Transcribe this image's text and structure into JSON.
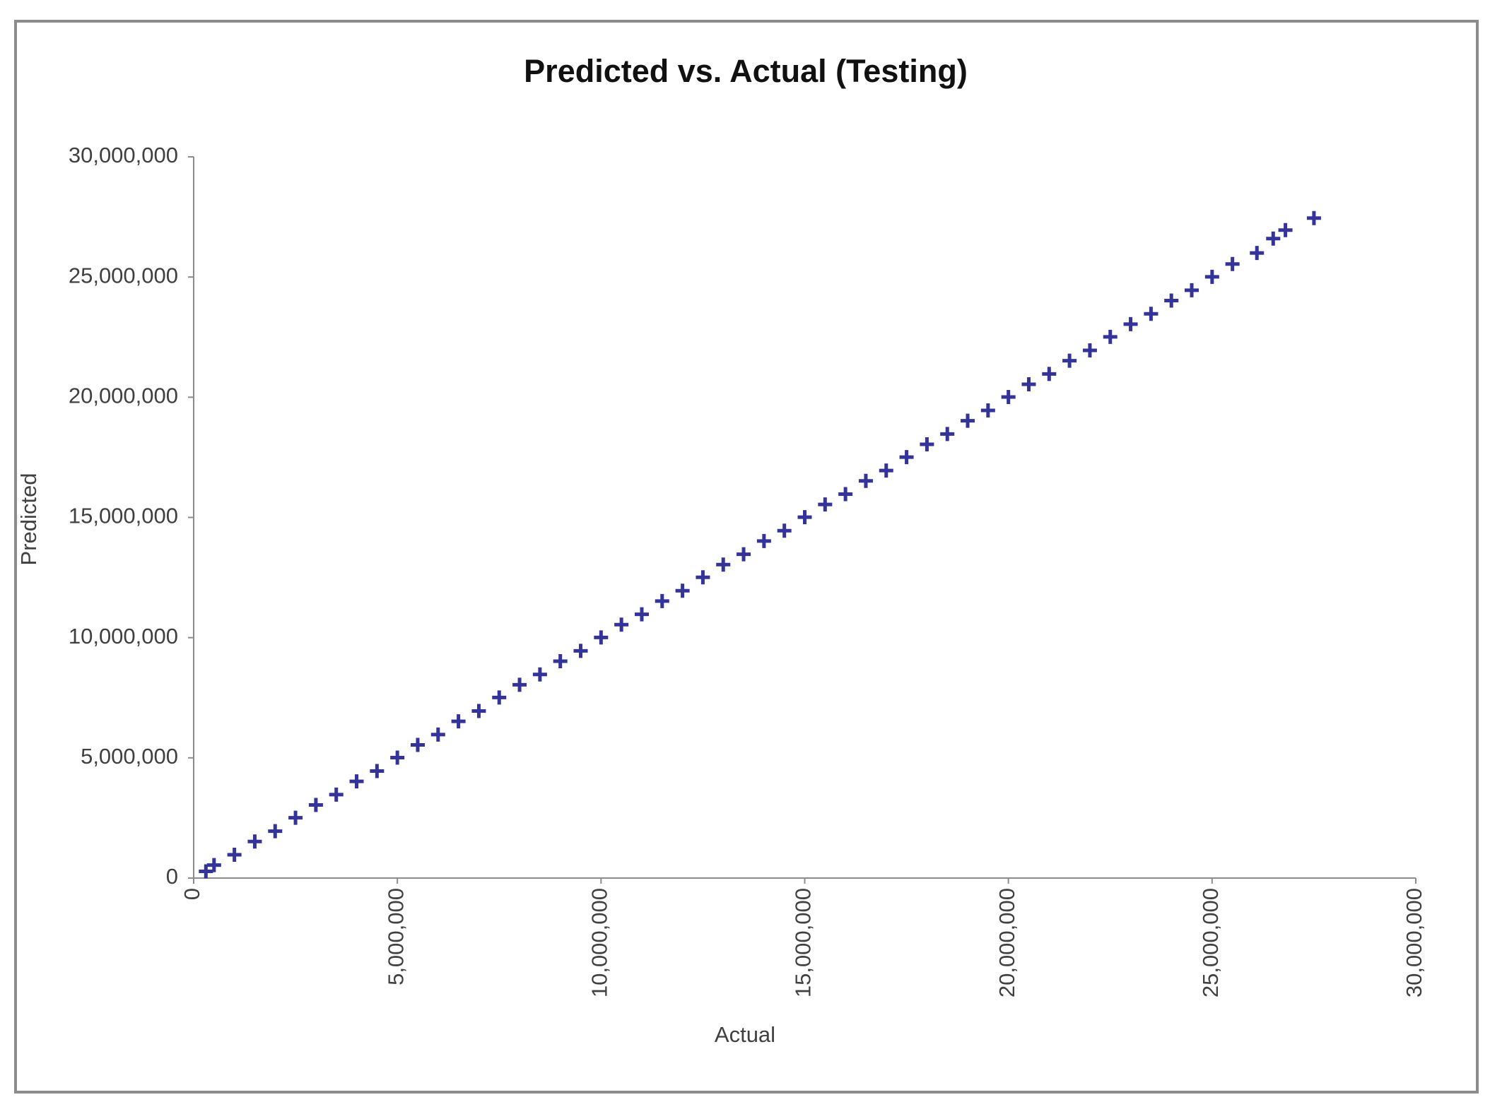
{
  "chart_data": {
    "type": "scatter",
    "title": "Predicted vs. Actual (Testing)",
    "x_label": "Actual",
    "y_label": "Predicted",
    "color": "#333399",
    "marker": "plus",
    "x": [
      300000,
      500000,
      1000000,
      1500000,
      2000000,
      2500000,
      3000000,
      3500000,
      4000000,
      4500000,
      5000000,
      5500000,
      6000000,
      6500000,
      7000000,
      7500000,
      8000000,
      8500000,
      9000000,
      9500000,
      10000000,
      10500000,
      11000000,
      11500000,
      12000000,
      12500000,
      13000000,
      13500000,
      14000000,
      14500000,
      15000000,
      15500000,
      16000000,
      16500000,
      17000000,
      17500000,
      18000000,
      18500000,
      19000000,
      19500000,
      20000000,
      20500000,
      21000000,
      21500000,
      22000000,
      22500000,
      23000000,
      23500000,
      24000000,
      24500000,
      25000000,
      25500000,
      26100000,
      26500000,
      26800000,
      27500000
    ],
    "values": [
      280000,
      540000,
      970000,
      1520000,
      1950000,
      2510000,
      3040000,
      3470000,
      4020000,
      4450000,
      5010000,
      5540000,
      5970000,
      6520000,
      6950000,
      7510000,
      8040000,
      8470000,
      9020000,
      9450000,
      10010000,
      10540000,
      10970000,
      11520000,
      11950000,
      12510000,
      13040000,
      13470000,
      14020000,
      14450000,
      15010000,
      15540000,
      15970000,
      16520000,
      16950000,
      17510000,
      18040000,
      18470000,
      19020000,
      19450000,
      20010000,
      20540000,
      20970000,
      21520000,
      21950000,
      22510000,
      23040000,
      23470000,
      24020000,
      24450000,
      25010000,
      25540000,
      26000000,
      26600000,
      26950000,
      27450000
    ],
    "xlim": [
      0,
      30000000
    ],
    "ylim": [
      0,
      30000000
    ],
    "xticks": [
      0,
      {
        "value": 5000000,
        "label": "5,000,000"
      },
      {
        "value": 10000000,
        "label": "10,000,000"
      },
      {
        "value": 15000000,
        "label": "15,000,000"
      },
      {
        "value": 20000000,
        "label": "20,000,000"
      },
      {
        "value": 25000000,
        "label": "25,000,000"
      },
      {
        "value": 30000000,
        "label": "30,000,000"
      }
    ],
    "yticks": [
      0,
      {
        "value": 5000000,
        "label": "5,000,000"
      },
      {
        "value": 10000000,
        "label": "10,000,000"
      },
      {
        "value": 15000000,
        "label": "15,000,000"
      },
      {
        "value": 20000000,
        "label": "20,000,000"
      },
      {
        "value": 25000000,
        "label": "25,000,000"
      },
      {
        "value": 30000000,
        "label": "30,000,000"
      }
    ],
    "grid": false
  }
}
